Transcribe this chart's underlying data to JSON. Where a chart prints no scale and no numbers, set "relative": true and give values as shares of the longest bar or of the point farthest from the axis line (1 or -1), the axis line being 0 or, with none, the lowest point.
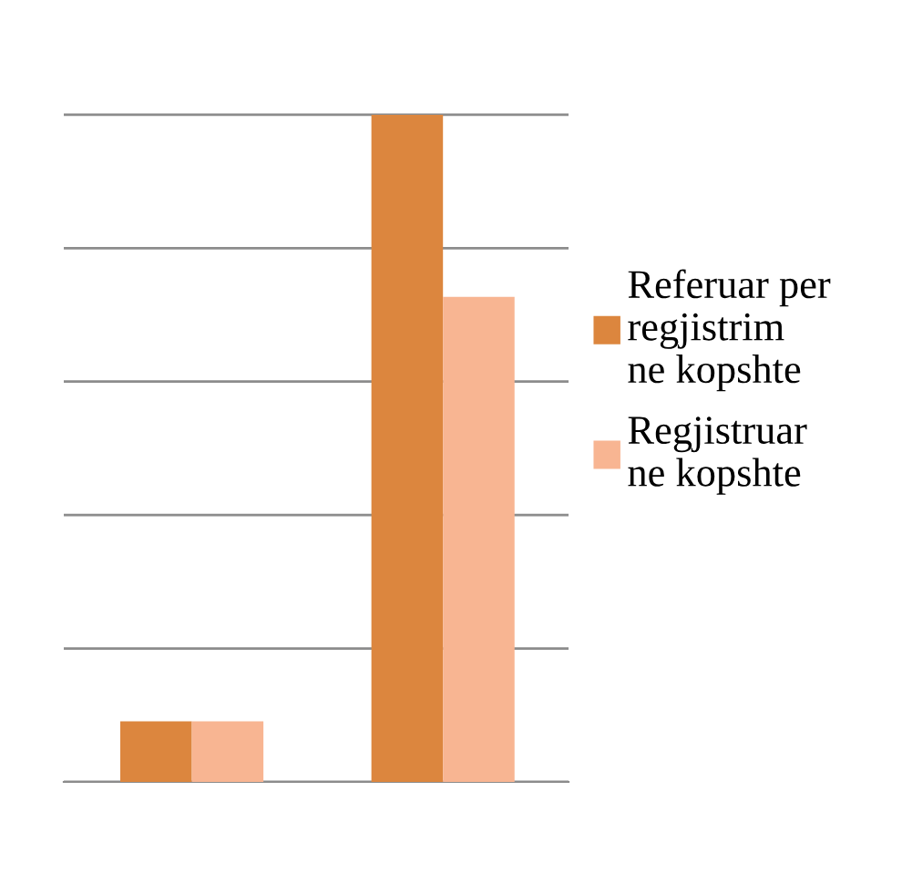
{
  "chart_data": {
    "type": "bar",
    "categories": [
      null,
      null
    ],
    "relative": true,
    "grid": "y",
    "legend": "right",
    "series": [
      {
        "name": "Referuar per regjistrim ne kopshte",
        "color": "#dc863e",
        "values": [
          0.091,
          1
        ]
      },
      {
        "name": "Regjistruar ne kopshte",
        "color": "#f8b592",
        "values": [
          0.091,
          0.727
        ]
      }
    ]
  }
}
